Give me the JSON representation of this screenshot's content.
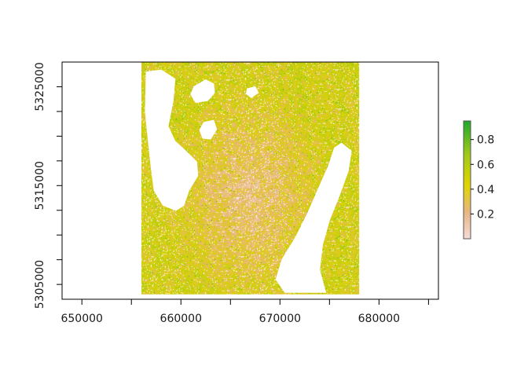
{
  "map": {
    "title": "",
    "xlim": [
      648000,
      686000
    ],
    "ylim": [
      5303500,
      5327500
    ],
    "raster_extent": {
      "xmin": 656000,
      "xmax": 678000,
      "ymin": 5304000,
      "ymax": 5327500
    },
    "x_ticks": [
      650000,
      655000,
      660000,
      665000,
      670000,
      675000,
      680000,
      685000
    ],
    "x_tick_labels": [
      "650000",
      "",
      "660000",
      "",
      "670000",
      "",
      "680000",
      ""
    ],
    "y_ticks": [
      5305000,
      5307500,
      5310000,
      5312500,
      5315000,
      5317500,
      5320000,
      5322500,
      5325000
    ],
    "y_tick_labels": [
      "5305000",
      "",
      "",
      "",
      "5315000",
      "",
      "",
      "",
      "5325000"
    ],
    "colors": {
      "low": "#f5dcd6",
      "mid_low": "#e7b07b",
      "mid": "#e2d400",
      "mid_high": "#a8cc17",
      "high": "#1ea82b",
      "water": "#ffffff",
      "frame": "#000000"
    },
    "legend": {
      "position": "right",
      "range": [
        0.0,
        0.95
      ],
      "ticks": [
        0.2,
        0.4,
        0.6,
        0.8
      ],
      "tick_labels": [
        "0.2",
        "0.4",
        "0.6",
        "0.8"
      ]
    },
    "lakes": [
      {
        "name": "",
        "points": [
          [
            656500,
            5326500
          ],
          [
            658000,
            5326700
          ],
          [
            659400,
            5325800
          ],
          [
            659200,
            5323500
          ],
          [
            658700,
            5321000
          ],
          [
            659400,
            5319500
          ],
          [
            660500,
            5318500
          ],
          [
            661600,
            5317400
          ],
          [
            661700,
            5316000
          ],
          [
            660800,
            5314500
          ],
          [
            660300,
            5313000
          ],
          [
            659500,
            5312500
          ],
          [
            658200,
            5313000
          ],
          [
            657300,
            5314500
          ],
          [
            657000,
            5316800
          ],
          [
            656700,
            5319500
          ],
          [
            656400,
            5322500
          ]
        ]
      },
      {
        "name": "",
        "points": [
          [
            676200,
            5319300
          ],
          [
            677200,
            5318500
          ],
          [
            676900,
            5316500
          ],
          [
            676000,
            5314000
          ],
          [
            675000,
            5311500
          ],
          [
            674300,
            5309000
          ],
          [
            674000,
            5306500
          ],
          [
            674600,
            5304200
          ],
          [
            670500,
            5304200
          ],
          [
            669600,
            5305500
          ],
          [
            670200,
            5307500
          ],
          [
            671600,
            5309800
          ],
          [
            672800,
            5312200
          ],
          [
            673800,
            5314500
          ],
          [
            674900,
            5317000
          ],
          [
            675500,
            5318800
          ]
        ]
      },
      {
        "name": "",
        "points": [
          [
            661300,
            5325000
          ],
          [
            662500,
            5325700
          ],
          [
            663300,
            5325300
          ],
          [
            663400,
            5324400
          ],
          [
            662700,
            5323600
          ],
          [
            661500,
            5323400
          ],
          [
            661000,
            5324200
          ]
        ]
      },
      {
        "name": "",
        "points": [
          [
            662300,
            5321400
          ],
          [
            663300,
            5321600
          ],
          [
            663600,
            5320700
          ],
          [
            663000,
            5319700
          ],
          [
            662200,
            5319800
          ],
          [
            661900,
            5320600
          ]
        ]
      },
      {
        "name": "",
        "points": [
          [
            666700,
            5324800
          ],
          [
            667500,
            5325000
          ],
          [
            667800,
            5324400
          ],
          [
            667100,
            5323900
          ],
          [
            666600,
            5324300
          ]
        ]
      }
    ]
  }
}
